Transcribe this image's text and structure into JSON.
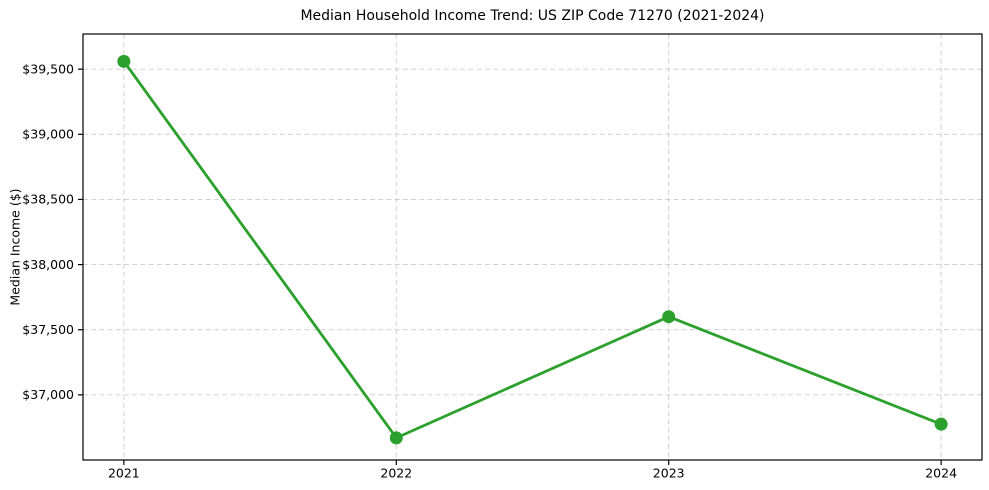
{
  "chart_data": {
    "type": "line",
    "title": "Median Household Income Trend: US ZIP Code 71270 (2021-2024)",
    "xlabel": "",
    "ylabel": "Median Income ($)",
    "x": [
      2021,
      2022,
      2023,
      2024
    ],
    "values": [
      39560,
      36670,
      37600,
      36775
    ],
    "xtick_labels": [
      "2021",
      "2022",
      "2023",
      "2024"
    ],
    "yticks": [
      37000,
      37500,
      38000,
      38500,
      39000,
      39500
    ],
    "ytick_labels": [
      "$37,000",
      "$37,500",
      "$38,000",
      "$38,500",
      "$39,000",
      "$39,500"
    ],
    "xlim": [
      2020.85,
      2024.15
    ],
    "ylim": [
      36500,
      39770
    ],
    "grid": true,
    "grid_style": "dashed",
    "legend": "none",
    "line_color": "#2ca02c",
    "marker": "circle",
    "colors": {
      "grid": "#cccccc",
      "spine": "#000000",
      "text": "#000000",
      "background": "#ffffff"
    }
  }
}
